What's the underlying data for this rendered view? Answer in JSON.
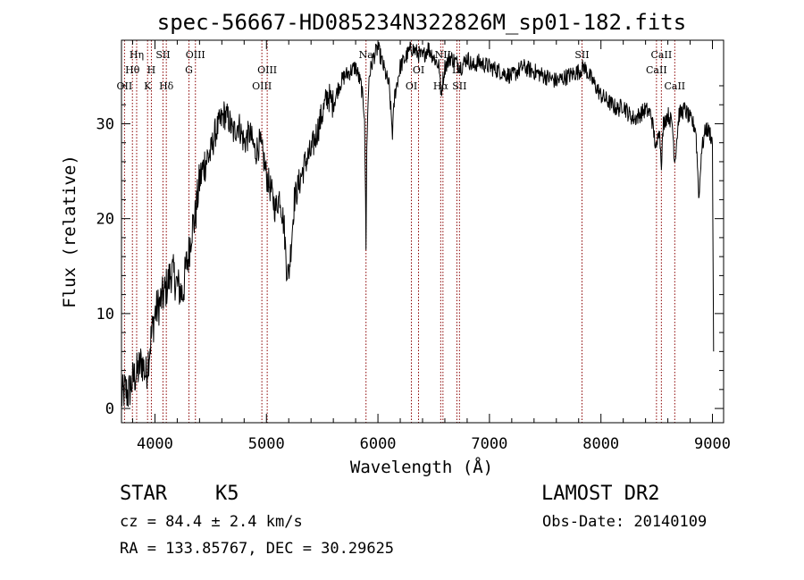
{
  "chart_data": {
    "type": "line",
    "title": "spec-56667-HD085234N322826M_sp01-182.fits",
    "xlabel": "Wavelength (Å)",
    "ylabel": "Flux (relative)",
    "xlim": [
      3700,
      9100
    ],
    "ylim": [
      -1.5,
      38.8
    ],
    "xticks": [
      4000,
      5000,
      6000,
      7000,
      8000,
      9000
    ],
    "yticks": [
      0,
      10,
      20,
      30
    ],
    "grid": false,
    "legend": "none",
    "series": [
      {
        "line_color": "#000000",
        "x": [
          3700,
          3730,
          3760,
          3800,
          3850,
          3880,
          3920,
          3960,
          4000,
          4040,
          4080,
          4110,
          4150,
          4200,
          4250,
          4280,
          4300,
          4330,
          4360,
          4400,
          4450,
          4500,
          4540,
          4580,
          4620,
          4660,
          4700,
          4750,
          4800,
          4850,
          4900,
          4940,
          4980,
          5000,
          5040,
          5080,
          5120,
          5160,
          5180,
          5200,
          5220,
          5250,
          5300,
          5350,
          5400,
          5450,
          5500,
          5550,
          5600,
          5650,
          5700,
          5750,
          5800,
          5850,
          5880,
          5893,
          5900,
          5920,
          5960,
          6000,
          6050,
          6100,
          6130,
          6150,
          6200,
          6250,
          6300,
          6350,
          6400,
          6450,
          6500,
          6550,
          6563,
          6600,
          6650,
          6700,
          6750,
          6800,
          6850,
          6900,
          7000,
          7100,
          7200,
          7300,
          7400,
          7500,
          7600,
          7700,
          7800,
          7850,
          7900,
          7950,
          8000,
          8050,
          8100,
          8150,
          8200,
          8250,
          8300,
          8350,
          8400,
          8450,
          8498,
          8520,
          8542,
          8560,
          8600,
          8640,
          8662,
          8700,
          8750,
          8800,
          8850,
          8880,
          8900,
          8940,
          8980,
          9000,
          9010
        ],
        "y": [
          1,
          2,
          1.5,
          3,
          4,
          5,
          3.5,
          7,
          10,
          11,
          12,
          13,
          14.5,
          13,
          12,
          15,
          16,
          19,
          20,
          24,
          26,
          27,
          29,
          30,
          31,
          30.5,
          29,
          30,
          28,
          29,
          27,
          28,
          26,
          24.5,
          23,
          21,
          22.5,
          19,
          15,
          14,
          17,
          22,
          24,
          26,
          27,
          29,
          31,
          33,
          32,
          34,
          35,
          35.5,
          36,
          34,
          31,
          17,
          28,
          35,
          37,
          38,
          36,
          34,
          29,
          33,
          36,
          37,
          38,
          37.5,
          37,
          38,
          37,
          36,
          33,
          36,
          37,
          36.5,
          36,
          37,
          36,
          36.5,
          36,
          35.5,
          35,
          36,
          35.5,
          35,
          34.5,
          35,
          35.5,
          36,
          35,
          34,
          33,
          32.5,
          32,
          31.5,
          32,
          31,
          30.5,
          31,
          31.5,
          31,
          27,
          30,
          26,
          30,
          31,
          30,
          26,
          31,
          31.5,
          30.5,
          29.5,
          22,
          27,
          29.5,
          29,
          28,
          6
        ]
      }
    ],
    "line_labels": [
      {
        "text": "Hη",
        "x": 3836,
        "y": 36.9
      },
      {
        "text": "Hθ",
        "x": 3798,
        "y": 35.3
      },
      {
        "text": "OII",
        "x": 3727,
        "y": 33.6
      },
      {
        "text": "SII",
        "x": 4072,
        "y": 36.9
      },
      {
        "text": "H",
        "x": 3968,
        "y": 35.3
      },
      {
        "text": "K",
        "x": 3934,
        "y": 33.6
      },
      {
        "text": "Hδ",
        "x": 4102,
        "y": 33.6
      },
      {
        "text": "OIII",
        "x": 4363,
        "y": 36.9
      },
      {
        "text": "G",
        "x": 4305,
        "y": 35.3
      },
      {
        "text": "OIII",
        "x": 5007,
        "y": 35.3
      },
      {
        "text": "OIII",
        "x": 4959,
        "y": 33.6
      },
      {
        "text": "Na",
        "x": 5893,
        "y": 36.9
      },
      {
        "text": "OI",
        "x": 6364,
        "y": 35.3
      },
      {
        "text": "OI",
        "x": 6300,
        "y": 33.6
      },
      {
        "text": "NII",
        "x": 6583,
        "y": 36.9
      },
      {
        "text": "Li",
        "x": 6708,
        "y": 35.3
      },
      {
        "text": "Hα",
        "x": 6563,
        "y": 33.6
      },
      {
        "text": "SII",
        "x": 6731,
        "y": 33.6
      },
      {
        "text": "SII",
        "x": 7830,
        "y": 36.9
      },
      {
        "text": "CaII",
        "x": 8542,
        "y": 36.9
      },
      {
        "text": "CaII",
        "x": 8498,
        "y": 35.3
      },
      {
        "text": "CaII",
        "x": 8662,
        "y": 33.6
      }
    ],
    "line_markers": [
      3727,
      3798,
      3836,
      3934,
      3968,
      4072,
      4102,
      4305,
      4363,
      4959,
      5007,
      5893,
      6300,
      6364,
      6563,
      6583,
      6708,
      6731,
      7830,
      8498,
      8542,
      8662
    ],
    "marker_color": "#8b0000"
  },
  "info": {
    "object_class": "STAR",
    "subclass": "K5",
    "survey": "LAMOST DR2",
    "redshift": "cz = 84.4 ± 2.4 km/s",
    "obs_date": "Obs-Date: 20140109",
    "coords": "RA = 133.85767, DEC =  30.29625"
  }
}
